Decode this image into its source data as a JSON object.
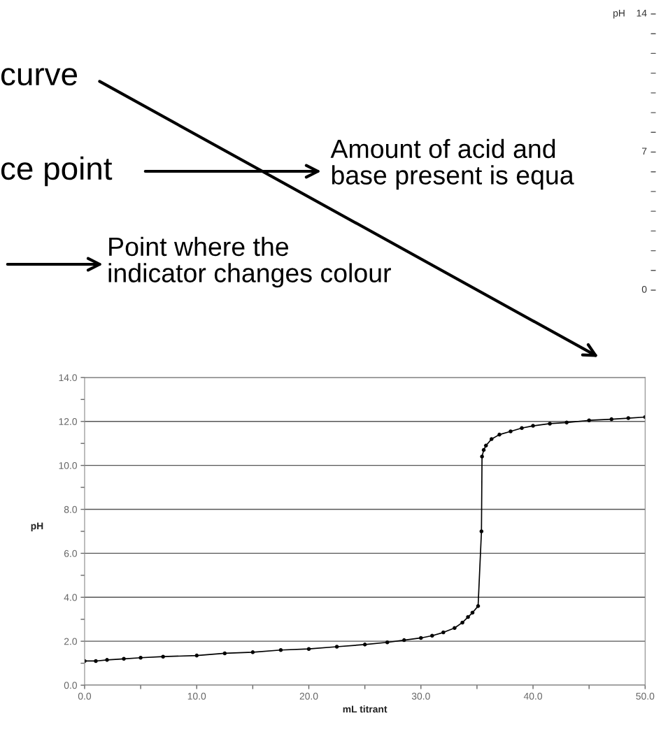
{
  "chart_data": [
    {
      "type": "line",
      "xlabel": "mL titrant",
      "ylabel": "pH",
      "x": [
        0,
        1,
        2,
        3.5,
        5,
        7,
        10,
        12.5,
        15,
        17.5,
        20,
        22.5,
        25,
        27,
        28.5,
        30,
        31,
        32,
        33,
        33.7,
        34.2,
        34.6,
        35.1,
        35.4,
        35.45,
        35.6,
        35.8,
        36.3,
        37,
        38,
        39,
        40,
        41.5,
        43,
        45,
        47,
        48.5,
        50
      ],
      "series": [
        {
          "color": "#000000",
          "values": [
            1.1,
            1.1,
            1.15,
            1.2,
            1.25,
            1.3,
            1.35,
            1.45,
            1.5,
            1.6,
            1.65,
            1.75,
            1.85,
            1.95,
            2.05,
            2.15,
            2.25,
            2.4,
            2.6,
            2.85,
            3.1,
            3.3,
            3.6,
            7.0,
            10.4,
            10.7,
            10.9,
            11.2,
            11.4,
            11.55,
            11.7,
            11.8,
            11.9,
            11.95,
            12.05,
            12.1,
            12.15,
            12.2
          ]
        }
      ],
      "xlim": [
        0,
        50
      ],
      "ylim": [
        0,
        14
      ],
      "xticks": [
        {
          "value": 0,
          "label": "0.0"
        },
        {
          "value": 5,
          "label": null
        },
        {
          "value": 10,
          "label": "10.0"
        },
        {
          "value": 15,
          "label": null
        },
        {
          "value": 20,
          "label": "20.0"
        },
        {
          "value": 25,
          "label": null
        },
        {
          "value": 30,
          "label": "30.0"
        },
        {
          "value": 35,
          "label": null
        },
        {
          "value": 40,
          "label": "40.0"
        },
        {
          "value": 45,
          "label": null
        },
        {
          "value": 50,
          "label": "50.0"
        }
      ],
      "yticks": [
        {
          "value": 0,
          "label": "0.0"
        },
        {
          "value": 1,
          "label": null
        },
        {
          "value": 2,
          "label": "2.0"
        },
        {
          "value": 3,
          "label": null
        },
        {
          "value": 4,
          "label": "4.0"
        },
        {
          "value": 5,
          "label": null
        },
        {
          "value": 6,
          "label": "6.0"
        },
        {
          "value": 7,
          "label": null
        },
        {
          "value": 8,
          "label": "8.0"
        },
        {
          "value": 9,
          "label": null
        },
        {
          "value": 10,
          "label": "10.0"
        },
        {
          "value": 11,
          "label": null
        },
        {
          "value": 12,
          "label": "12.0"
        },
        {
          "value": 13,
          "label": null
        },
        {
          "value": 14,
          "label": "14.0"
        }
      ],
      "grid": "y",
      "marker": "circle",
      "line_style": "solid",
      "annotations": [
        "curve",
        "ce point",
        "Amount of acid and\nbase present is equa",
        "Point where the\nindicator changes colour"
      ]
    },
    {
      "type": "other",
      "annotations": [
        "pH",
        "14",
        "7",
        "0"
      ]
    }
  ]
}
